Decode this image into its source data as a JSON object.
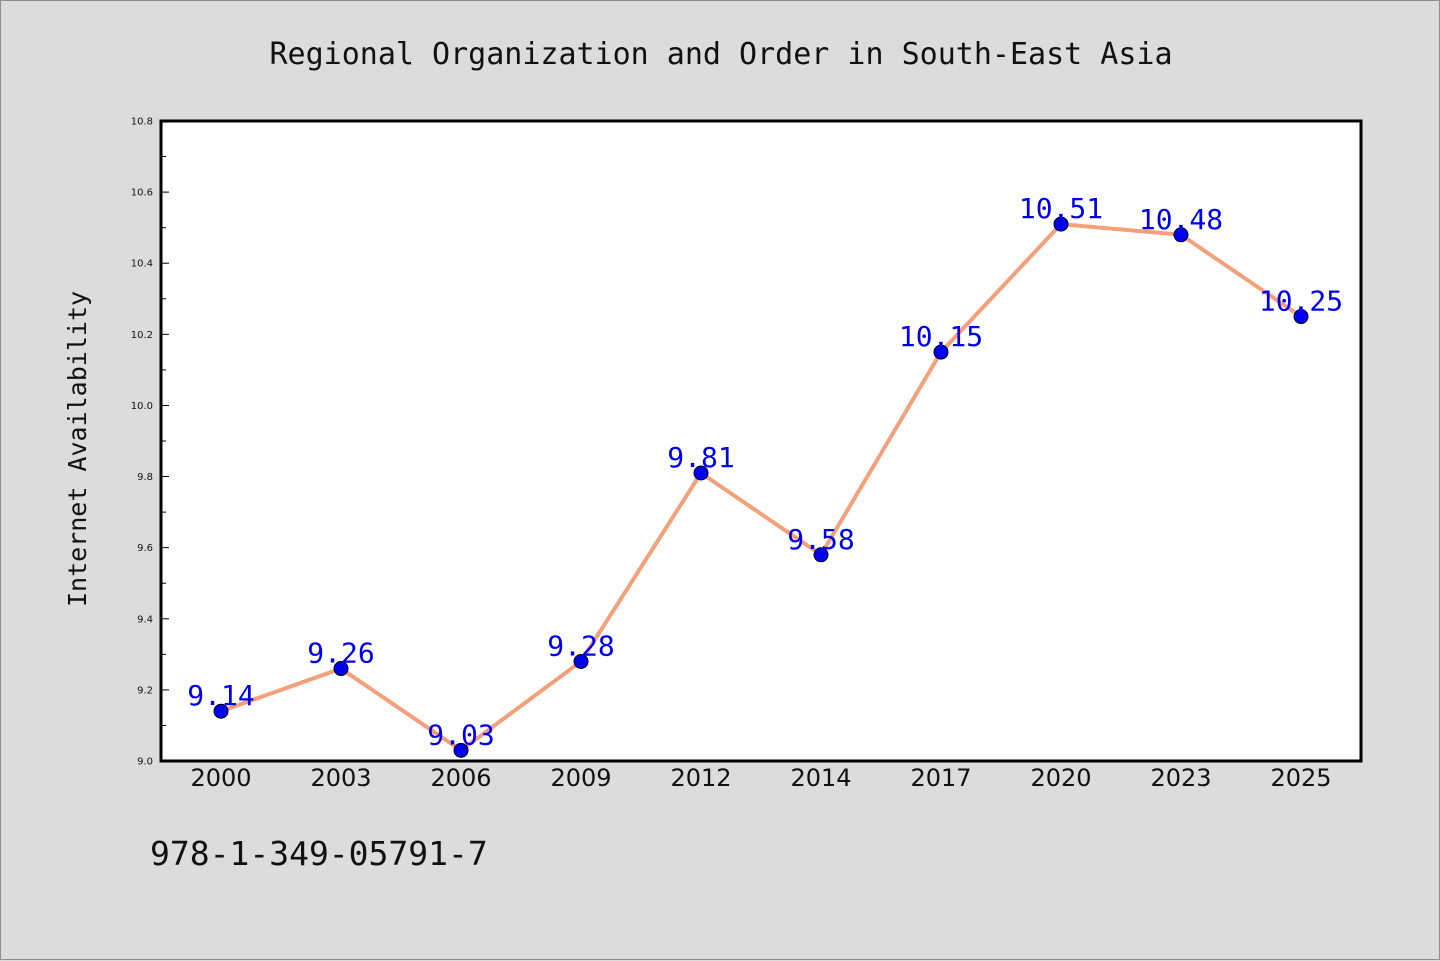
{
  "chart_data": {
    "type": "line",
    "title": "Regional Organization and Order in South-East Asia",
    "xlabel": "",
    "ylabel": "Internet Availability",
    "categories": [
      "2000",
      "2003",
      "2006",
      "2009",
      "2012",
      "2014",
      "2017",
      "2020",
      "2023",
      "2025"
    ],
    "series": [
      {
        "values": [
          9.14,
          9.26,
          9.03,
          9.28,
          9.81,
          9.58,
          10.15,
          10.51,
          10.48,
          10.25
        ],
        "line_color": "#f4a07a",
        "marker_color": "#0000ee"
      }
    ],
    "data_labels": [
      "9.14",
      "9.26",
      "9.03",
      "9.28",
      "9.81",
      "9.58",
      "10.15",
      "10.51",
      "10.48",
      "10.25"
    ],
    "ylim": [
      9.0,
      10.8
    ],
    "yticks": [
      "9.0",
      "9.2",
      "9.4",
      "9.6",
      "9.8",
      "10.0",
      "10.2",
      "10.4",
      "10.6",
      "10.8"
    ],
    "grid": false,
    "legend": "none"
  },
  "footer": {
    "isbn": "978-1-349-05791-7"
  }
}
